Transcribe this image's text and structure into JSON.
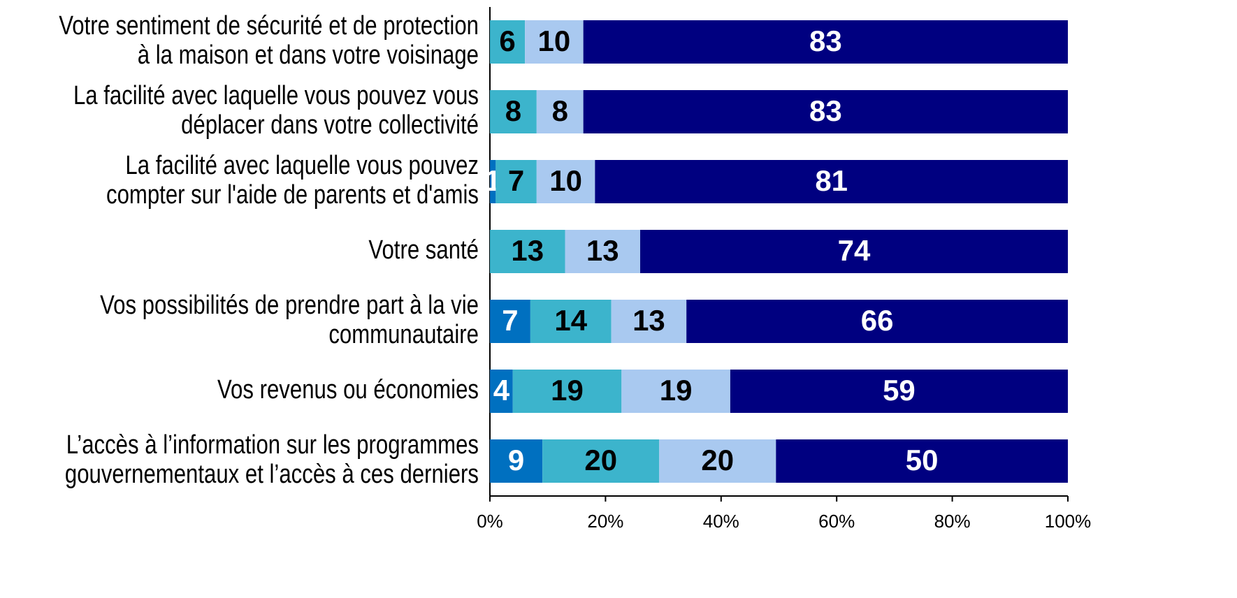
{
  "chart_data": {
    "type": "bar",
    "orientation": "horizontal",
    "stacking": "percent",
    "categories": [
      "Votre sentiment de sécurité et de protection\nà la maison et dans votre voisinage",
      "La facilité avec laquelle vous pouvez vous\ndéplacer dans votre collectivité",
      "La facilité avec laquelle vous pouvez\ncompter sur l'aide de parents et d'amis",
      "Votre santé",
      "Vos possibilités de prendre part à la vie\ncommunautaire",
      "Vos revenus ou économies",
      "L’accès à l’information sur les programmes\ngouvernementaux et l’accès à ces derniers"
    ],
    "series": [
      {
        "color": "#0070c0",
        "label_color": "#ffffff",
        "values": [
          null,
          null,
          1,
          null,
          7,
          4,
          9
        ]
      },
      {
        "color": "#3cb4cc",
        "label_color": "#000000",
        "values": [
          6,
          8,
          7,
          13,
          14,
          19,
          20
        ]
      },
      {
        "color": "#a9c9f0",
        "label_color": "#000000",
        "values": [
          10,
          8,
          10,
          13,
          13,
          19,
          20
        ]
      },
      {
        "color": "#000080",
        "label_color": "#ffffff",
        "values": [
          83,
          83,
          81,
          74,
          66,
          59,
          50
        ]
      }
    ],
    "xlim": [
      0,
      100
    ],
    "xticks": [
      {
        "value": 0,
        "label": "0%"
      },
      {
        "value": 20,
        "label": "20%"
      },
      {
        "value": 40,
        "label": "40%"
      },
      {
        "value": 60,
        "label": "60%"
      },
      {
        "value": 80,
        "label": "80%"
      },
      {
        "value": 100,
        "label": "100%"
      }
    ]
  }
}
